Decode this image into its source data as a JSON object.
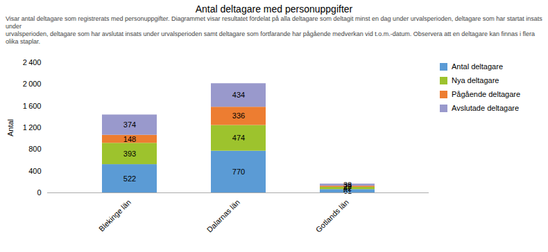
{
  "chart_data": {
    "type": "bar",
    "stacked": true,
    "title": "Antal deltagare med personuppgifter",
    "subtitle": [
      "Visar antal deltagare som registrerats med personuppgifter. Diagrammet visar resultatet fördelat på alla deltagare som deltagit minst en dag under urvalsperioden, deltagare som har startat insats under",
      "urvalsperioden, deltagare som har avslutat insats under urvalsperioden samt deltagare som fortfarande har pågående medverkan vid t.o.m.-datum. Observera att en deltagare kan finnas i flera olika staplar."
    ],
    "categories": [
      "Blekinge län",
      "Dalarnas län",
      "Gotlands län"
    ],
    "series": [
      {
        "name": "Antal deltagare",
        "color": "#5B9BD5",
        "values": [
          522,
          770,
          61
        ]
      },
      {
        "name": "Nya deltagare",
        "color": "#9DC32D",
        "values": [
          393,
          474,
          42
        ]
      },
      {
        "name": "Pågående deltagare",
        "color": "#ED7D31",
        "values": [
          148,
          336,
          22
        ]
      },
      {
        "name": "Avslutade deltagare",
        "color": "#9999CC",
        "values": [
          374,
          434,
          38
        ]
      }
    ],
    "ylabel": "Antal",
    "ylim": [
      0,
      2400
    ],
    "yticks": [
      0,
      400,
      800,
      {
        "value": 1200,
        "label": "1 200"
      },
      {
        "value": 1600,
        "label": "1 600"
      },
      {
        "value": 2000,
        "label": "2 000"
      },
      {
        "value": 2400,
        "label": "2 400"
      }
    ],
    "grid": false,
    "legend": "right",
    "data_labels": true
  }
}
